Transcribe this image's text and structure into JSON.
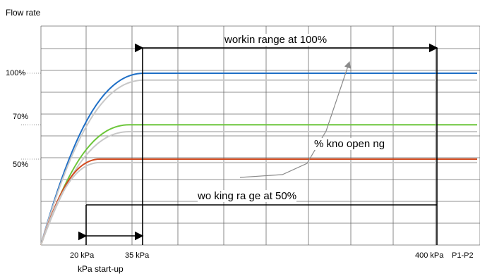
{
  "chart_data": {
    "type": "line",
    "ylabel": "Flow rate",
    "xlabel": "P1-P2",
    "y_ticks": [
      {
        "label": "100%",
        "value": 100
      },
      {
        "label": "70%",
        "value": 70
      },
      {
        "label": "50%",
        "value": 50
      }
    ],
    "x_ticks": [
      {
        "label": "20 kPa",
        "value": 20
      },
      {
        "label": "35 kPa",
        "value": 35
      },
      {
        "label": "400 kPa",
        "value": 400
      }
    ],
    "startup_label": "kPa start-up",
    "annotations": {
      "range_100": "workin  range at 100%",
      "knob_opening": "% kno  open ng",
      "range_50": "wo king ra  ge at 50%"
    },
    "series": [
      {
        "color": "#1f6fc6",
        "plateau": 100,
        "plateau_start": 35
      },
      {
        "color": "#c8c8c8",
        "plateau": 96,
        "plateau_start": 35
      },
      {
        "color": "#6cc63a",
        "plateau": 70,
        "plateau_start": 30
      },
      {
        "color": "#c8c8c8",
        "plateau": 66,
        "plateau_start": 30
      },
      {
        "color": "#d24a1e",
        "plateau": 50,
        "plateau_start": 20
      },
      {
        "color": "#c8c8c8",
        "plateau": 48,
        "plateau_start": 20
      }
    ],
    "grid": true
  }
}
